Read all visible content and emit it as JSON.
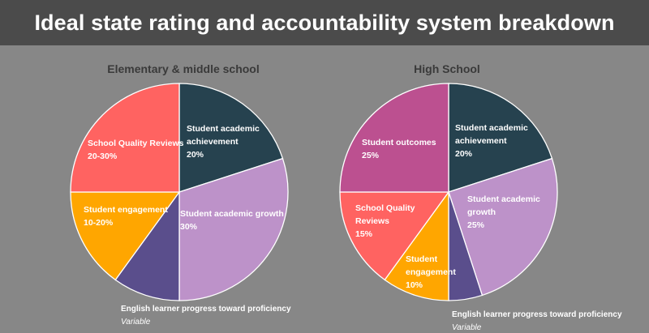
{
  "header": {
    "title": "Ideal state rating and accountability system breakdown"
  },
  "chart_data": [
    {
      "type": "pie",
      "title": "Elementary & middle school",
      "slices": [
        {
          "label": [
            "Student academic",
            "achievement"
          ],
          "value": 20,
          "value_label": "20%",
          "color": "#26424f"
        },
        {
          "label": [
            "Student academic growth"
          ],
          "value": 30,
          "value_label": "30%",
          "color": "#bd92c9"
        },
        {
          "label": [
            "English learner progress toward proficiency"
          ],
          "value": 10,
          "value_label": "Variable",
          "color": "#5a4e8c",
          "external": true
        },
        {
          "label": [
            "Student engagement"
          ],
          "value": 15,
          "value_label": "10-20%",
          "color": "#ffa600"
        },
        {
          "label": [
            "School Quality Reviews"
          ],
          "value": 25,
          "value_label": "20-30%",
          "color": "#ff6361"
        }
      ]
    },
    {
      "type": "pie",
      "title": "High School",
      "slices": [
        {
          "label": [
            "Student academic",
            "achievement"
          ],
          "value": 20,
          "value_label": "20%",
          "color": "#26424f"
        },
        {
          "label": [
            "Student academic",
            "growth"
          ],
          "value": 25,
          "value_label": "25%",
          "color": "#bd92c9"
        },
        {
          "label": [
            "English learner progress toward proficiency"
          ],
          "value": 5,
          "value_label": "Variable",
          "color": "#5a4e8c",
          "external": true
        },
        {
          "label": [
            "Student",
            "engagement"
          ],
          "value": 10,
          "value_label": "10%",
          "color": "#ffa600"
        },
        {
          "label": [
            "School Quality",
            "Reviews"
          ],
          "value": 15,
          "value_label": "15%",
          "color": "#ff6361"
        },
        {
          "label": [
            "Student outcomes"
          ],
          "value": 25,
          "value_label": "25%",
          "color": "#bc5090"
        }
      ]
    }
  ]
}
